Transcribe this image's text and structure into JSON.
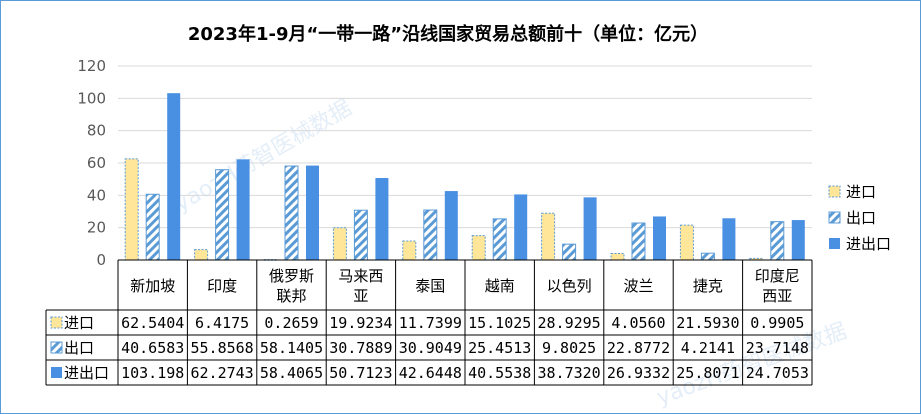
{
  "colors": {
    "import_fill": "#ffe699",
    "import_stroke": "#5b9bd5",
    "export_hatch": "#5b9bd5",
    "total_fill": "#4a90e2",
    "grid": "#d9d9d9",
    "axis": "#bfbfbf"
  },
  "watermark": "yaozH药智医械数据",
  "chart_data": {
    "type": "bar",
    "title": "2023年1-9月“一带一路”沿线国家贸易总额前十（单位：亿元）",
    "ylim": [
      0,
      120
    ],
    "yticks": [
      0,
      20,
      40,
      60,
      80,
      100,
      120
    ],
    "categories": [
      "新加坡",
      "印度",
      "俄罗斯联邦",
      "马来西亚",
      "泰国",
      "越南",
      "以色列",
      "波兰",
      "捷克",
      "印度尼西亚"
    ],
    "category_lines": [
      [
        "新加坡"
      ],
      [
        "印度"
      ],
      [
        "俄罗斯",
        "联邦"
      ],
      [
        "马来西",
        "亚"
      ],
      [
        "泰国"
      ],
      [
        "越南"
      ],
      [
        "以色列"
      ],
      [
        "波兰"
      ],
      [
        "捷克"
      ],
      [
        "印度尼",
        "西亚"
      ]
    ],
    "series": [
      {
        "name": "进口",
        "values": [
          62.5404,
          6.4175,
          0.2659,
          19.9234,
          11.7399,
          15.1025,
          28.9295,
          4.056,
          21.593,
          0.9905
        ],
        "labels": [
          "62.5404",
          "6.4175",
          "0.2659",
          "19.9234",
          "11.7399",
          "15.1025",
          "28.9295",
          "4.0560",
          "21.5930",
          "0.9905"
        ]
      },
      {
        "name": "出口",
        "values": [
          40.6583,
          55.8568,
          58.1405,
          30.7889,
          30.9049,
          25.4513,
          9.8025,
          22.8772,
          4.2141,
          23.7148
        ],
        "labels": [
          "40.6583",
          "55.8568",
          "58.1405",
          "30.7889",
          "30.9049",
          "25.4513",
          "9.8025",
          "22.8772",
          "4.2141",
          "23.7148"
        ]
      },
      {
        "name": "进出口",
        "values": [
          103.198,
          62.2743,
          58.4065,
          50.7123,
          42.6448,
          40.5538,
          38.732,
          26.9332,
          25.8071,
          24.7053
        ],
        "labels": [
          "103.198",
          "62.2743",
          "58.4065",
          "50.7123",
          "42.6448",
          "40.5538",
          "38.7320",
          "26.9332",
          "25.8071",
          "24.7053"
        ]
      }
    ],
    "legend_position": "right",
    "grid": true,
    "data_table": true
  }
}
